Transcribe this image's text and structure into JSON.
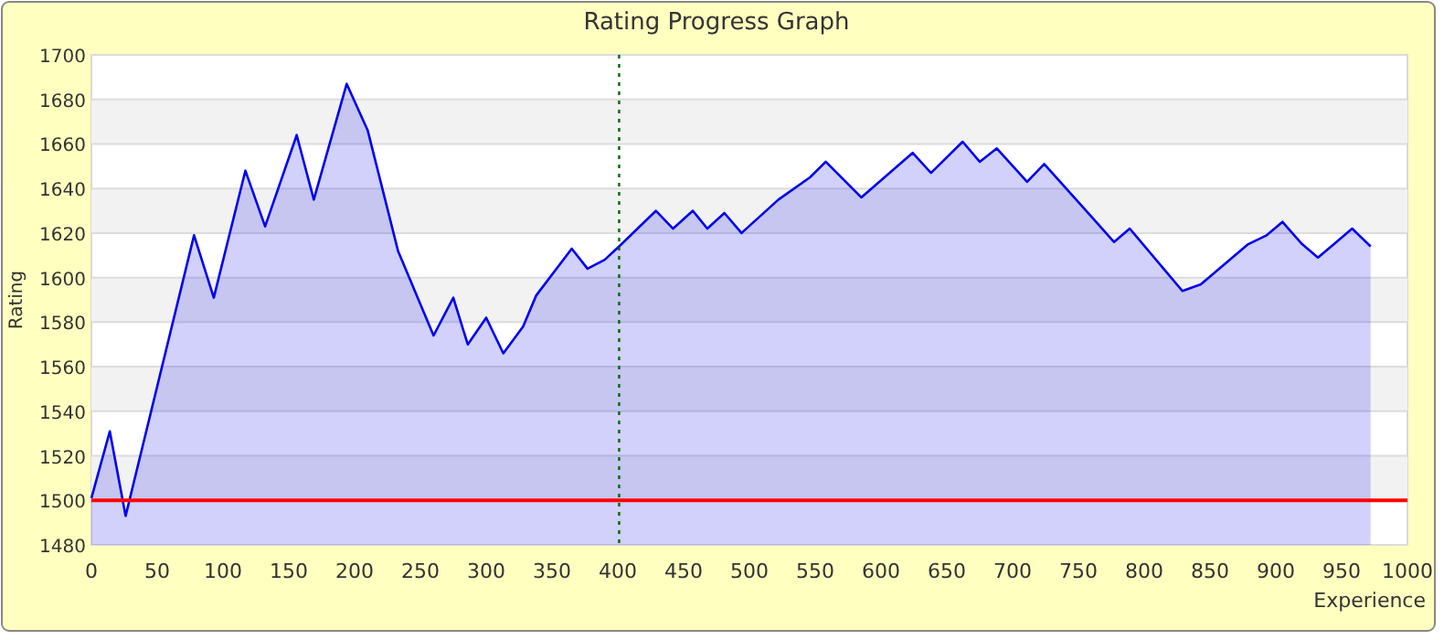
{
  "chart_data": {
    "type": "area",
    "title": "Rating Progress Graph",
    "xlabel": "Experience",
    "ylabel": "Rating",
    "x": [
      0,
      14,
      26,
      78,
      93,
      117,
      132,
      156,
      169,
      194,
      210,
      233,
      260,
      275,
      286,
      300,
      313,
      328,
      338,
      365,
      377,
      390,
      401,
      429,
      442,
      457,
      468,
      481,
      494,
      522,
      546,
      558,
      585,
      624,
      638,
      662,
      675,
      688,
      711,
      724,
      762,
      777,
      789,
      829,
      843,
      879,
      893,
      905,
      920,
      932,
      946,
      958,
      972
    ],
    "series": [
      {
        "color": "#0000ee",
        "values": [
          1501,
          1531,
          1493,
          1619,
          1591,
          1648,
          1623,
          1664,
          1635,
          1687,
          1666,
          1612,
          1574,
          1591,
          1570,
          1582,
          1566,
          1578,
          1592,
          1613,
          1604,
          1608,
          1614,
          1630,
          1622,
          1630,
          1622,
          1629,
          1620,
          1635,
          1645,
          1652,
          1636,
          1656,
          1647,
          1661,
          1652,
          1658,
          1643,
          1651,
          1626,
          1616,
          1622,
          1594,
          1597,
          1615,
          1619,
          1625,
          1615,
          1609,
          1616,
          1622,
          1614
        ]
      }
    ],
    "xlim": [
      0,
      1000
    ],
    "xticks": [
      0,
      50,
      100,
      150,
      200,
      250,
      300,
      350,
      400,
      450,
      500,
      550,
      600,
      650,
      700,
      750,
      800,
      850,
      900,
      950,
      1000
    ],
    "ylim": [
      1480,
      1700
    ],
    "yticks": [
      1480,
      1500,
      1520,
      1540,
      1560,
      1580,
      1600,
      1620,
      1640,
      1660,
      1680,
      1700
    ],
    "grid": "y",
    "ref_lines": [
      {
        "axis": "y",
        "value": 1500,
        "color": "#ff0000",
        "line_style": "solid"
      },
      {
        "axis": "x",
        "value": 401,
        "color": "#006600",
        "line_style": "dotted"
      }
    ]
  }
}
